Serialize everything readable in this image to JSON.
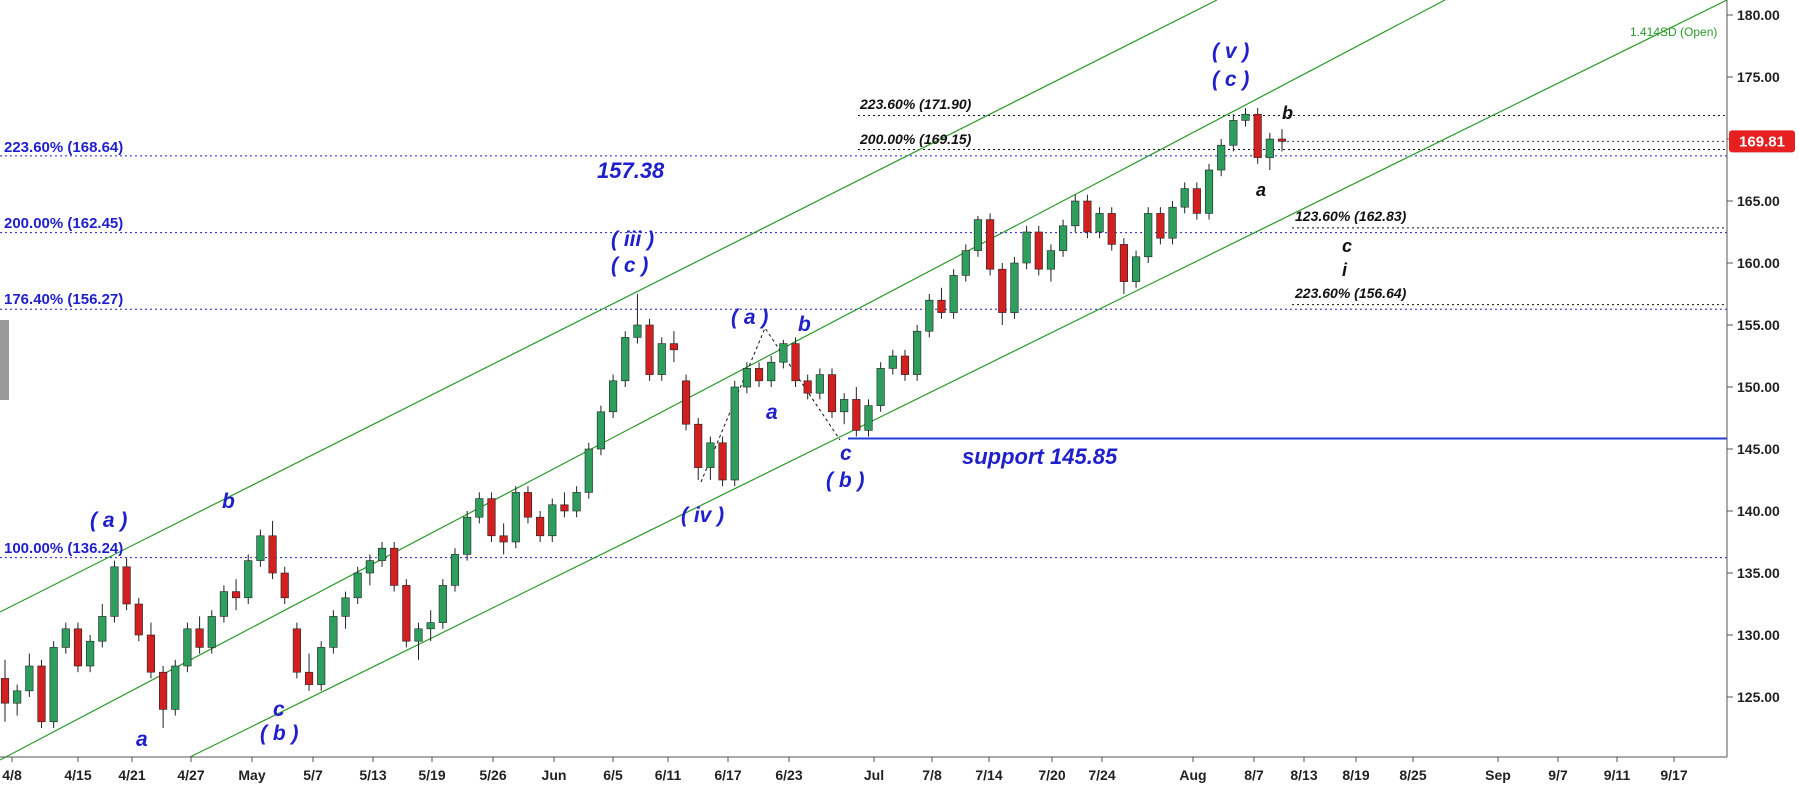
{
  "chart_data": {
    "type": "candlestick",
    "y_axis": {
      "side": "right",
      "ylim": [
        120,
        181.5
      ],
      "ticks": [
        "125.00",
        "130.00",
        "135.00",
        "140.00",
        "145.00",
        "150.00",
        "155.00",
        "160.00",
        "165.00",
        "170.00",
        "175.00",
        "180.00"
      ],
      "tick_values": [
        125,
        130,
        135,
        140,
        145,
        150,
        155,
        160,
        165,
        170,
        175,
        180
      ]
    },
    "x_axis": {
      "labels": [
        "4/8",
        "4/15",
        "4/21",
        "4/27",
        "May",
        "5/7",
        "5/13",
        "5/19",
        "5/26",
        "Jun",
        "6/5",
        "6/11",
        "6/17",
        "6/23",
        "Jul",
        "7/8",
        "7/14",
        "7/20",
        "7/24",
        "Aug",
        "8/7",
        "8/13",
        "8/19",
        "8/25",
        "Sep",
        "9/7",
        "9/11",
        "9/17"
      ]
    },
    "last_price": "169.81",
    "channel_label": "1.414SD (Open)",
    "colors": {
      "up": "#2e9e5e",
      "down": "#d21f1f",
      "channel": "#2a9a2a",
      "fib": "#1f1fcc",
      "support": "#1f3fdd",
      "price_tag": "#e62020"
    },
    "candles": [
      [
        126.5,
        128.0,
        123.0,
        124.5
      ],
      [
        124.5,
        126.0,
        123.5,
        125.5
      ],
      [
        125.5,
        128.5,
        125.0,
        127.5
      ],
      [
        127.5,
        128.0,
        122.5,
        123.0
      ],
      [
        123.0,
        129.5,
        122.5,
        129.0
      ],
      [
        129.0,
        131.0,
        128.5,
        130.5
      ],
      [
        130.5,
        131.0,
        127.0,
        127.5
      ],
      [
        127.5,
        130.0,
        127.0,
        129.5
      ],
      [
        129.5,
        132.5,
        129.0,
        131.5
      ],
      [
        131.5,
        136.0,
        131.0,
        135.5
      ],
      [
        135.5,
        136.2,
        132.0,
        132.5
      ],
      [
        132.5,
        133.0,
        129.5,
        130.0
      ],
      [
        130.0,
        131.0,
        126.5,
        127.0
      ],
      [
        127.0,
        127.5,
        122.5,
        124.0
      ],
      [
        124.0,
        128.0,
        123.5,
        127.5
      ],
      [
        127.5,
        131.0,
        127.0,
        130.5
      ],
      [
        130.5,
        131.5,
        128.5,
        129.0
      ],
      [
        129.0,
        132.0,
        128.5,
        131.5
      ],
      [
        131.5,
        134.0,
        131.0,
        133.5
      ],
      [
        133.5,
        134.5,
        132.0,
        133.0
      ],
      [
        133.0,
        136.5,
        132.5,
        136.0
      ],
      [
        136.0,
        138.5,
        135.5,
        138.0
      ],
      [
        138.0,
        139.2,
        134.5,
        135.0
      ],
      [
        135.0,
        135.5,
        132.5,
        133.0
      ],
      [
        130.5,
        131.0,
        126.5,
        127.0
      ],
      [
        127.0,
        128.5,
        125.5,
        126.0
      ],
      [
        126.0,
        129.5,
        125.5,
        129.0
      ],
      [
        129.0,
        132.0,
        128.5,
        131.5
      ],
      [
        131.5,
        133.5,
        130.5,
        133.0
      ],
      [
        133.0,
        135.5,
        132.5,
        135.0
      ],
      [
        135.0,
        136.5,
        134.0,
        136.0
      ],
      [
        136.0,
        137.5,
        135.5,
        137.0
      ],
      [
        137.0,
        137.5,
        133.5,
        134.0
      ],
      [
        134.0,
        134.5,
        129.0,
        129.5
      ],
      [
        129.5,
        131.0,
        128.0,
        130.5
      ],
      [
        130.5,
        132.0,
        129.5,
        131.0
      ],
      [
        131.0,
        134.5,
        130.5,
        134.0
      ],
      [
        134.0,
        137.0,
        133.5,
        136.5
      ],
      [
        136.5,
        140.0,
        136.0,
        139.5
      ],
      [
        139.5,
        141.5,
        139.0,
        141.0
      ],
      [
        141.0,
        141.5,
        137.5,
        138.0
      ],
      [
        138.0,
        139.0,
        136.5,
        137.5
      ],
      [
        137.5,
        142.0,
        137.0,
        141.5
      ],
      [
        141.5,
        142.0,
        139.0,
        139.5
      ],
      [
        139.5,
        140.0,
        137.5,
        138.0
      ],
      [
        138.0,
        141.0,
        137.5,
        140.5
      ],
      [
        140.5,
        141.5,
        139.5,
        140.0
      ],
      [
        140.0,
        142.0,
        139.5,
        141.5
      ],
      [
        141.5,
        145.5,
        141.0,
        145.0
      ],
      [
        145.0,
        148.5,
        144.5,
        148.0
      ],
      [
        148.0,
        151.0,
        147.5,
        150.5
      ],
      [
        150.5,
        154.5,
        150.0,
        154.0
      ],
      [
        154.0,
        157.5,
        153.5,
        155.0
      ],
      [
        155.0,
        155.5,
        150.5,
        151.0
      ],
      [
        151.0,
        154.0,
        150.5,
        153.5
      ],
      [
        153.5,
        154.5,
        152.0,
        153.0
      ],
      [
        150.5,
        151.0,
        146.5,
        147.0
      ],
      [
        147.0,
        147.5,
        142.5,
        143.5
      ],
      [
        143.5,
        146.0,
        142.5,
        145.5
      ],
      [
        145.5,
        146.0,
        142.0,
        142.5
      ],
      [
        142.5,
        150.5,
        142.0,
        150.0
      ],
      [
        150.0,
        152.0,
        149.5,
        151.5
      ],
      [
        151.5,
        152.0,
        150.0,
        150.5
      ],
      [
        150.5,
        152.5,
        150.0,
        152.0
      ],
      [
        152.0,
        153.8,
        151.5,
        153.5
      ],
      [
        153.5,
        154.0,
        150.0,
        150.5
      ],
      [
        150.5,
        151.0,
        149.0,
        149.5
      ],
      [
        149.5,
        151.5,
        149.0,
        151.0
      ],
      [
        151.0,
        151.5,
        147.5,
        148.0
      ],
      [
        148.0,
        149.5,
        147.0,
        149.0
      ],
      [
        149.0,
        150.0,
        146.0,
        146.5
      ],
      [
        146.5,
        149.0,
        146.0,
        148.5
      ],
      [
        148.5,
        152.0,
        148.0,
        151.5
      ],
      [
        151.5,
        153.0,
        151.0,
        152.5
      ],
      [
        152.5,
        153.0,
        150.5,
        151.0
      ],
      [
        151.0,
        155.0,
        150.5,
        154.5
      ],
      [
        154.5,
        157.5,
        154.0,
        157.0
      ],
      [
        157.0,
        158.0,
        155.5,
        156.0
      ],
      [
        156.0,
        159.5,
        155.5,
        159.0
      ],
      [
        159.0,
        161.5,
        158.5,
        161.0
      ],
      [
        161.0,
        163.8,
        160.5,
        163.5
      ],
      [
        163.5,
        164.0,
        159.0,
        159.5
      ],
      [
        159.5,
        160.0,
        155.0,
        156.0
      ],
      [
        156.0,
        160.5,
        155.5,
        160.0
      ],
      [
        160.0,
        163.0,
        159.5,
        162.5
      ],
      [
        162.5,
        163.0,
        159.0,
        159.5
      ],
      [
        159.5,
        161.5,
        158.5,
        161.0
      ],
      [
        161.0,
        163.5,
        160.5,
        163.0
      ],
      [
        163.0,
        165.5,
        162.5,
        165.0
      ],
      [
        165.0,
        165.5,
        162.0,
        162.5
      ],
      [
        162.5,
        164.5,
        162.0,
        164.0
      ],
      [
        164.0,
        164.5,
        161.0,
        161.5
      ],
      [
        161.5,
        162.0,
        157.5,
        158.5
      ],
      [
        158.5,
        161.0,
        158.0,
        160.5
      ],
      [
        160.5,
        164.5,
        160.0,
        164.0
      ],
      [
        164.0,
        164.5,
        161.5,
        162.0
      ],
      [
        162.0,
        165.0,
        161.5,
        164.5
      ],
      [
        164.5,
        166.5,
        164.0,
        166.0
      ],
      [
        166.0,
        166.5,
        163.5,
        164.0
      ],
      [
        164.0,
        168.0,
        163.5,
        167.5
      ],
      [
        167.5,
        170.0,
        167.0,
        169.5
      ],
      [
        169.5,
        172.0,
        169.0,
        171.5
      ],
      [
        171.5,
        172.5,
        171.0,
        172.0
      ],
      [
        172.0,
        172.5,
        168.0,
        168.5
      ],
      [
        168.5,
        170.5,
        167.5,
        170.0
      ],
      [
        170.0,
        170.8,
        169.0,
        169.81
      ]
    ]
  },
  "fib_left": [
    {
      "label": "223.60% (168.64)",
      "value": 168.64
    },
    {
      "label": "200.00% (162.45)",
      "value": 162.45
    },
    {
      "label": "176.40% (156.27)",
      "value": 156.27
    },
    {
      "label": "100.00% (136.24)",
      "value": 136.24
    }
  ],
  "fib_right": [
    {
      "label": "223.60% (171.90)",
      "value": 171.9
    },
    {
      "label": "200.00% (169.15)",
      "value": 169.15
    },
    {
      "label": "123.60% (162.83)",
      "value": 162.83
    },
    {
      "label": "223.60% (156.64)",
      "value": 156.64
    }
  ],
  "support": {
    "label": "support 145.85",
    "value": 145.85
  },
  "peak_label": "157.38",
  "waves": {
    "a1": "( a )",
    "b1": "b",
    "a2": "a",
    "c1": "c",
    "b2": "( b )",
    "iii": "( iii )",
    "c_iii": "( c )",
    "iv": "( iv )",
    "a_p": "( a )",
    "b3": "b",
    "a3": "a",
    "c2": "c",
    "b_p": "( b )",
    "v": "( v )",
    "c_v": "( c )",
    "b4": "b",
    "a4": "a",
    "c3": "c",
    "i": "i"
  }
}
